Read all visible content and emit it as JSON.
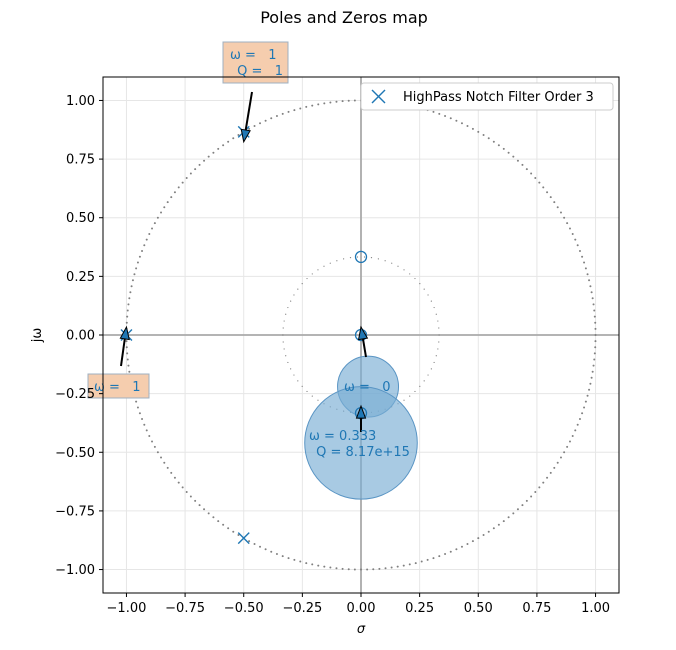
{
  "chart_data": {
    "type": "scatter",
    "title": "Poles and Zeros map",
    "xlabel": "σ",
    "ylabel": "jω",
    "xlim": [
      -1.1,
      1.1
    ],
    "ylim": [
      -1.1,
      1.1
    ],
    "grid": true,
    "legend_position": "top-right",
    "x_ticks": [
      "−1.00",
      "−0.75",
      "−0.50",
      "−0.25",
      "0.00",
      "0.25",
      "0.50",
      "0.75",
      "1.00"
    ],
    "y_ticks": [
      "−1.00",
      "−0.75",
      "−0.50",
      "−0.25",
      "0.00",
      "0.25",
      "0.50",
      "0.75",
      "1.00"
    ],
    "series": [
      {
        "name": "HighPass Notch Filter Order 3",
        "poles": [
          {
            "x": -0.5,
            "y": 0.866
          },
          {
            "x": -1.0,
            "y": 0.0
          },
          {
            "x": -0.5,
            "y": -0.866
          }
        ],
        "zeros": [
          {
            "x": 0.0,
            "y": 0.333
          },
          {
            "x": 0.0,
            "y": 0.0
          },
          {
            "x": 0.0,
            "y": -0.333
          }
        ]
      }
    ],
    "unit_circle_radius": 1.0,
    "zero_circle_radius": 0.333,
    "q_circles": [
      {
        "x": 0.03,
        "y": -0.22,
        "r": 0.13
      },
      {
        "x": 0.0,
        "y": -0.46,
        "r": 0.24
      }
    ],
    "annotations": [
      {
        "text": "ω =   1\n Q =   1",
        "target": {
          "x": -0.5,
          "y": 0.866
        },
        "boxed": true
      },
      {
        "text": "ω =   1",
        "target": {
          "x": -1.0,
          "y": 0.0
        },
        "boxed": true
      },
      {
        "text": "ω =   0",
        "target": {
          "x": 0.0,
          "y": 0.0
        },
        "boxed": false
      },
      {
        "text": "ω = 0.333\n Q = 8.17e+15",
        "target": {
          "x": 0.0,
          "y": -0.333
        },
        "boxed": false
      }
    ],
    "colors": {
      "series": "#1f77b4",
      "circle_dots": "#808080",
      "axis_lines": "#aaaaaa",
      "grid": "#e6e6e6",
      "annotation_box": "#f5cdae",
      "bubble": "#7aaed4"
    }
  }
}
